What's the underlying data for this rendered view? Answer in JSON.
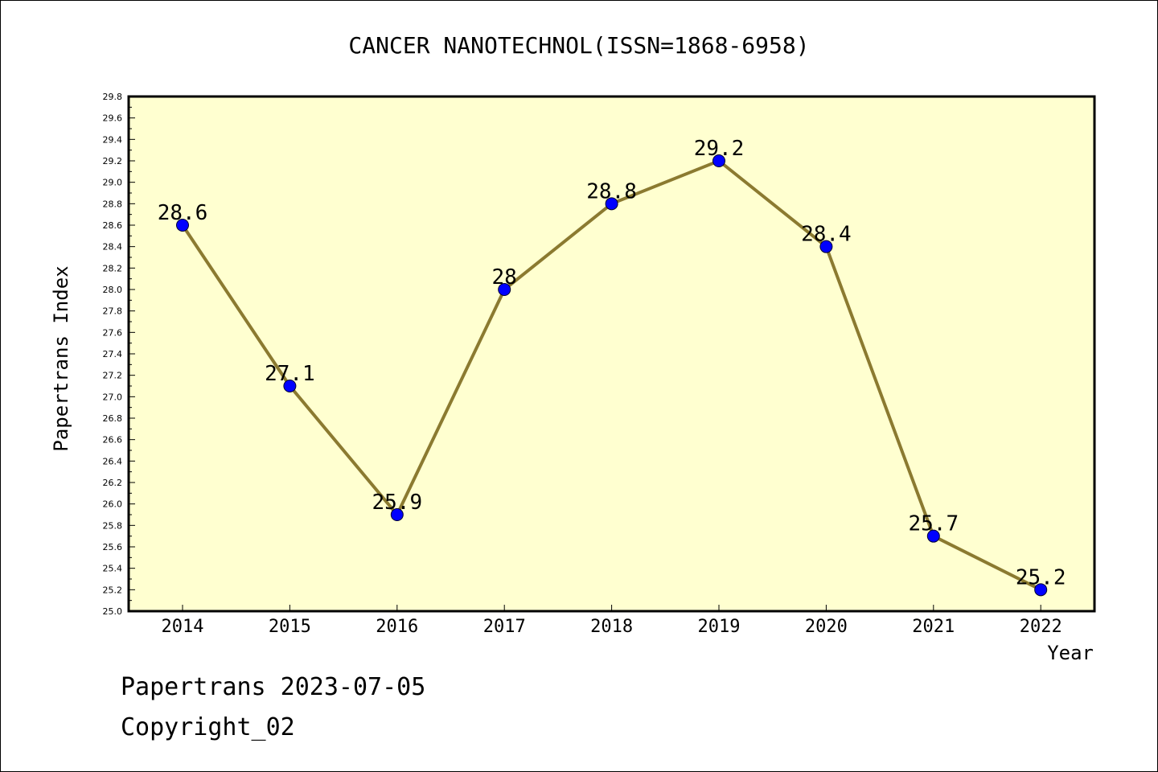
{
  "chart_data": {
    "type": "line",
    "title": "CANCER NANOTECHNOL(ISSN=1868-6958)",
    "xlabel": "Year",
    "ylabel": "Papertrans Index",
    "x": [
      "2014",
      "2015",
      "2016",
      "2017",
      "2018",
      "2019",
      "2020",
      "2021",
      "2022"
    ],
    "series": [
      {
        "values": [
          28.6,
          27.1,
          25.9,
          28.0,
          28.8,
          29.2,
          28.4,
          25.7,
          25.2
        ],
        "labels": [
          "28.6",
          "27.1",
          "25.9",
          "28",
          "28.8",
          "29.2",
          "28.4",
          "25.7",
          "25.2"
        ]
      }
    ],
    "ylim": [
      25.0,
      29.8
    ],
    "yticks": [
      "25.0",
      "25.2",
      "25.4",
      "25.6",
      "25.8",
      "26.0",
      "26.2",
      "26.4",
      "26.6",
      "26.8",
      "27.0",
      "27.2",
      "27.4",
      "27.6",
      "27.8",
      "28.0",
      "28.2",
      "28.4",
      "28.6",
      "28.8",
      "29.0",
      "29.2",
      "29.4",
      "29.6",
      "29.8"
    ],
    "grid": false,
    "colors": {
      "plot_background": "#ffffd0",
      "line": "#8b7a30",
      "marker": "#0000ff"
    }
  },
  "footer": {
    "line1": "Papertrans 2023-07-05",
    "line2": "Copyright_02"
  }
}
